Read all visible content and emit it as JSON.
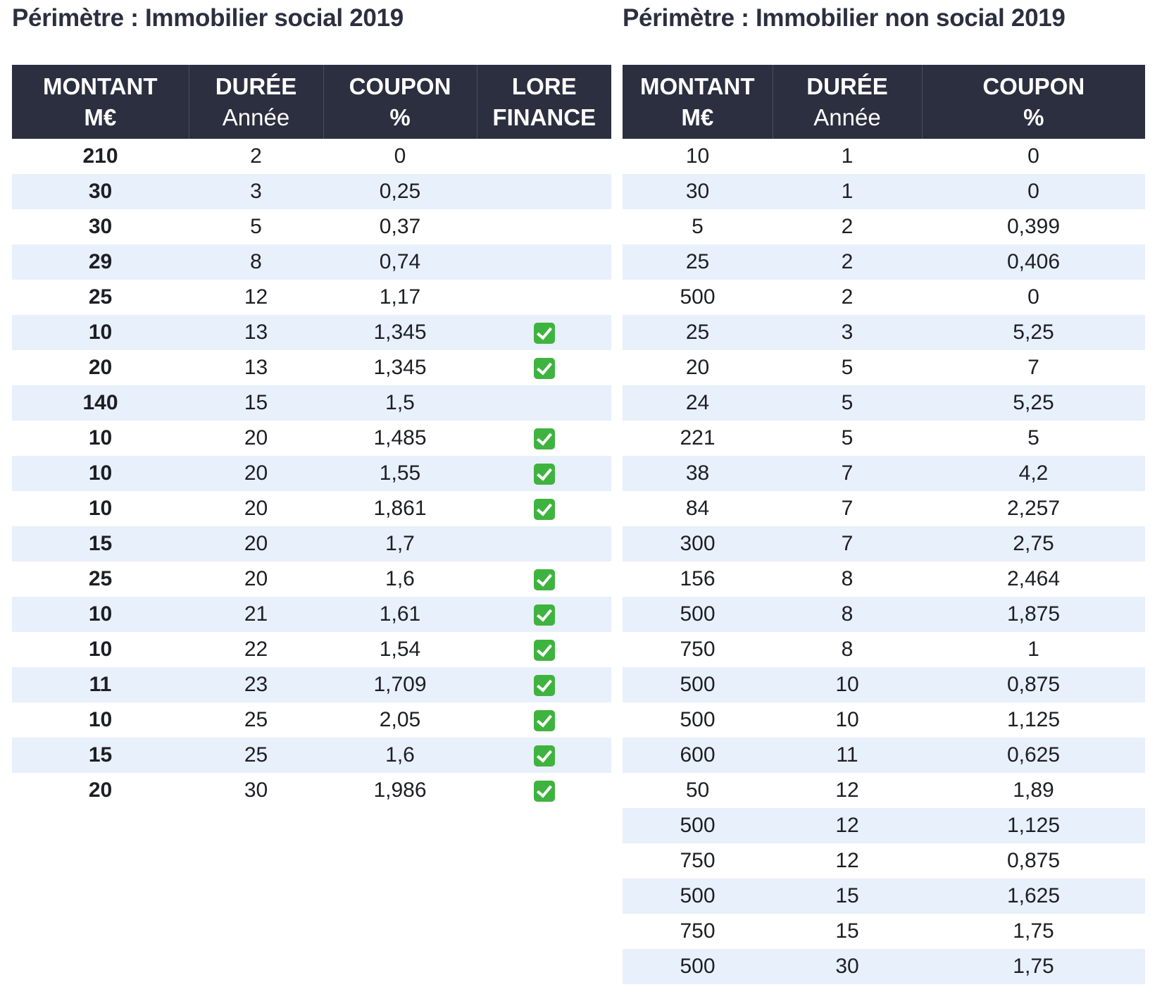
{
  "left": {
    "title": "Périmètre : Immobilier social 2019",
    "headers": [
      {
        "main": "MONTANT",
        "sub": "M€"
      },
      {
        "main": "DURÉE",
        "sub": "Année"
      },
      {
        "main": "COUPON",
        "sub": "%"
      },
      {
        "main": "LORE",
        "sub": "FINANCE"
      }
    ],
    "rows": [
      {
        "montant": "210",
        "duree": "2",
        "coupon": "0",
        "lore": false
      },
      {
        "montant": "30",
        "duree": "3",
        "coupon": "0,25",
        "lore": false
      },
      {
        "montant": "30",
        "duree": "5",
        "coupon": "0,37",
        "lore": false
      },
      {
        "montant": "29",
        "duree": "8",
        "coupon": "0,74",
        "lore": false
      },
      {
        "montant": "25",
        "duree": "12",
        "coupon": "1,17",
        "lore": false
      },
      {
        "montant": "10",
        "duree": "13",
        "coupon": "1,345",
        "lore": true
      },
      {
        "montant": "20",
        "duree": "13",
        "coupon": "1,345",
        "lore": true
      },
      {
        "montant": "140",
        "duree": "15",
        "coupon": "1,5",
        "lore": false
      },
      {
        "montant": "10",
        "duree": "20",
        "coupon": "1,485",
        "lore": true
      },
      {
        "montant": "10",
        "duree": "20",
        "coupon": "1,55",
        "lore": true
      },
      {
        "montant": "10",
        "duree": "20",
        "coupon": "1,861",
        "lore": true
      },
      {
        "montant": "15",
        "duree": "20",
        "coupon": "1,7",
        "lore": false
      },
      {
        "montant": "25",
        "duree": "20",
        "coupon": "1,6",
        "lore": true
      },
      {
        "montant": "10",
        "duree": "21",
        "coupon": "1,61",
        "lore": true
      },
      {
        "montant": "10",
        "duree": "22",
        "coupon": "1,54",
        "lore": true
      },
      {
        "montant": "11",
        "duree": "23",
        "coupon": "1,709",
        "lore": true
      },
      {
        "montant": "10",
        "duree": "25",
        "coupon": "2,05",
        "lore": true
      },
      {
        "montant": "15",
        "duree": "25",
        "coupon": "1,6",
        "lore": true
      },
      {
        "montant": "20",
        "duree": "30",
        "coupon": "1,986",
        "lore": true
      }
    ],
    "check_icon": "green-checkmark-icon",
    "check_color": "#3fb33f"
  },
  "right": {
    "title": "Périmètre : Immobilier non social 2019",
    "headers": [
      {
        "main": "MONTANT",
        "sub": "M€"
      },
      {
        "main": "DURÉE",
        "sub": "Année"
      },
      {
        "main": "COUPON",
        "sub": "%"
      }
    ],
    "rows": [
      {
        "montant": "10",
        "duree": "1",
        "coupon": "0"
      },
      {
        "montant": "30",
        "duree": "1",
        "coupon": "0"
      },
      {
        "montant": "5",
        "duree": "2",
        "coupon": "0,399"
      },
      {
        "montant": "25",
        "duree": "2",
        "coupon": "0,406"
      },
      {
        "montant": "500",
        "duree": "2",
        "coupon": "0"
      },
      {
        "montant": "25",
        "duree": "3",
        "coupon": "5,25"
      },
      {
        "montant": "20",
        "duree": "5",
        "coupon": "7"
      },
      {
        "montant": "24",
        "duree": "5",
        "coupon": "5,25"
      },
      {
        "montant": "221",
        "duree": "5",
        "coupon": "5"
      },
      {
        "montant": "38",
        "duree": "7",
        "coupon": "4,2"
      },
      {
        "montant": "84",
        "duree": "7",
        "coupon": "2,257"
      },
      {
        "montant": "300",
        "duree": "7",
        "coupon": "2,75"
      },
      {
        "montant": "156",
        "duree": "8",
        "coupon": "2,464"
      },
      {
        "montant": "500",
        "duree": "8",
        "coupon": "1,875"
      },
      {
        "montant": "750",
        "duree": "8",
        "coupon": "1"
      },
      {
        "montant": "500",
        "duree": "10",
        "coupon": "0,875"
      },
      {
        "montant": "500",
        "duree": "10",
        "coupon": "1,125"
      },
      {
        "montant": "600",
        "duree": "11",
        "coupon": "0,625"
      },
      {
        "montant": "50",
        "duree": "12",
        "coupon": "1,89"
      },
      {
        "montant": "500",
        "duree": "12",
        "coupon": "1,125"
      },
      {
        "montant": "750",
        "duree": "12",
        "coupon": "0,875"
      },
      {
        "montant": "500",
        "duree": "15",
        "coupon": "1,625"
      },
      {
        "montant": "750",
        "duree": "15",
        "coupon": "1,75"
      },
      {
        "montant": "500",
        "duree": "30",
        "coupon": "1,75"
      }
    ]
  },
  "colors": {
    "header_bg": "#2b2f3f",
    "header_text": "#ffffff",
    "stripe": "#e8f0fb",
    "title_text": "#2b2f3f"
  }
}
